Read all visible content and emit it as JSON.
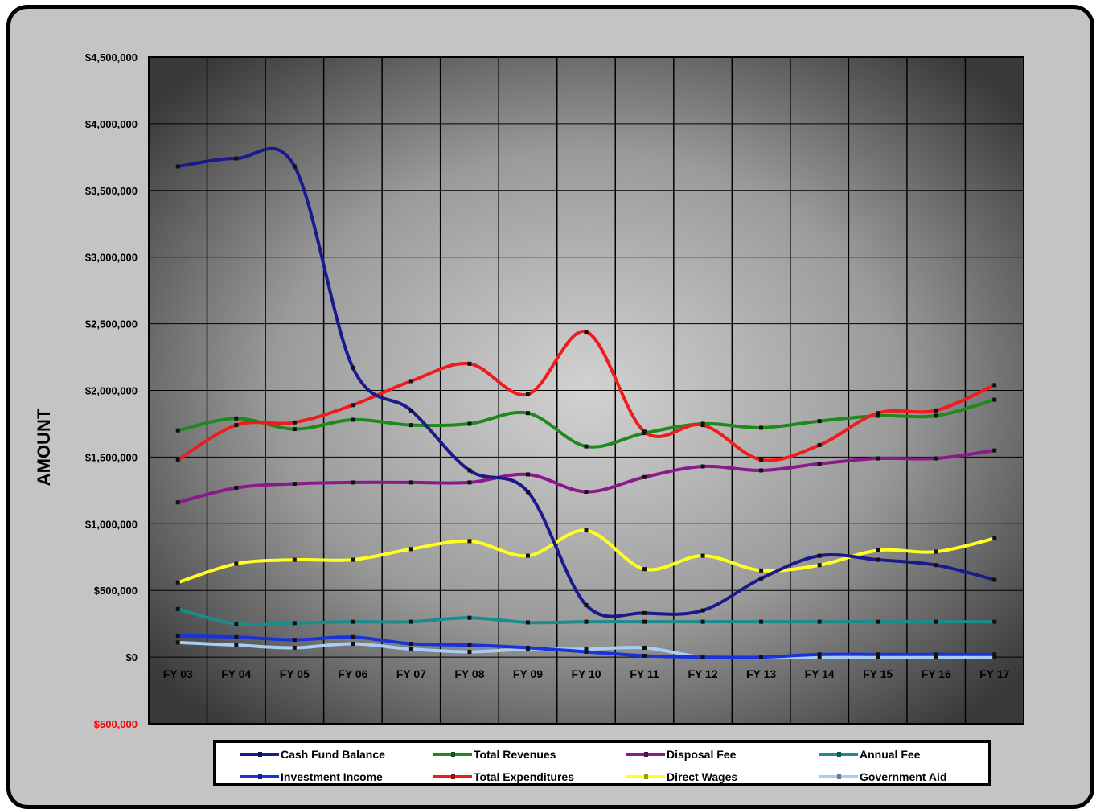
{
  "chart_data": {
    "type": "line",
    "title": "",
    "xlabel": "",
    "ylabel": "AMOUNT",
    "ylim": [
      -500000,
      4500000
    ],
    "y_ticks": [
      {
        "value": 4500000,
        "label": "$4,500,000"
      },
      {
        "value": 4000000,
        "label": "$4,000,000"
      },
      {
        "value": 3500000,
        "label": "$3,500,000"
      },
      {
        "value": 3000000,
        "label": "$3,000,000"
      },
      {
        "value": 2500000,
        "label": "$2,500,000"
      },
      {
        "value": 2000000,
        "label": "$2,000,000"
      },
      {
        "value": 1500000,
        "label": "$1,500,000"
      },
      {
        "value": 1000000,
        "label": "$1,000,000"
      },
      {
        "value": 500000,
        "label": "$500,000"
      },
      {
        "value": 0,
        "label": "$0"
      },
      {
        "value": -500000,
        "label": "$500,000",
        "color": "#ff0000"
      }
    ],
    "categories": [
      "FY 03",
      "FY 04",
      "FY 05",
      "FY 06",
      "FY 07",
      "FY 08",
      "FY 09",
      "FY 10",
      "FY 11",
      "FY 12",
      "FY 13",
      "FY 14",
      "FY 15",
      "FY 16",
      "FY 17"
    ],
    "grid": true,
    "legend_position": "bottom",
    "series": [
      {
        "name": "Cash Fund Balance",
        "color": "#1a1a8c",
        "values": [
          3680000,
          3740000,
          3680000,
          2170000,
          1850000,
          1400000,
          1240000,
          390000,
          330000,
          350000,
          590000,
          760000,
          730000,
          690000,
          580000
        ]
      },
      {
        "name": "Total Revenues",
        "color": "#1e8a1e",
        "values": [
          1700000,
          1790000,
          1710000,
          1780000,
          1740000,
          1750000,
          1830000,
          1580000,
          1680000,
          1750000,
          1720000,
          1770000,
          1810000,
          1810000,
          1930000
        ]
      },
      {
        "name": "Disposal Fee",
        "color": "#8a1a8a",
        "values": [
          1160000,
          1270000,
          1300000,
          1310000,
          1310000,
          1310000,
          1370000,
          1240000,
          1350000,
          1430000,
          1400000,
          1450000,
          1490000,
          1490000,
          1550000
        ]
      },
      {
        "name": "Annual Fee",
        "color": "#1a8c8c",
        "values": [
          360000,
          250000,
          255000,
          265000,
          265000,
          295000,
          260000,
          265000,
          265000,
          265000,
          265000,
          265000,
          265000,
          265000,
          265000
        ]
      },
      {
        "name": "Investment Income",
        "color": "#1a33d9",
        "values": [
          160000,
          150000,
          130000,
          150000,
          100000,
          90000,
          70000,
          40000,
          10000,
          0,
          0,
          20000,
          20000,
          20000,
          20000
        ]
      },
      {
        "name": "Total Expenditures",
        "color": "#ee1c1c",
        "values": [
          1480000,
          1740000,
          1760000,
          1890000,
          2070000,
          2200000,
          1970000,
          2440000,
          1690000,
          1740000,
          1480000,
          1590000,
          1830000,
          1850000,
          2040000
        ]
      },
      {
        "name": "Direct Wages",
        "color": "#ffff22",
        "values": [
          560000,
          700000,
          730000,
          730000,
          810000,
          870000,
          760000,
          950000,
          660000,
          760000,
          650000,
          690000,
          800000,
          790000,
          890000
        ]
      },
      {
        "name": "Government Aid",
        "color": "#a8cdf5",
        "values": [
          110000,
          90000,
          70000,
          100000,
          60000,
          40000,
          60000,
          60000,
          70000,
          0,
          0,
          0,
          0,
          0,
          0
        ]
      }
    ]
  }
}
